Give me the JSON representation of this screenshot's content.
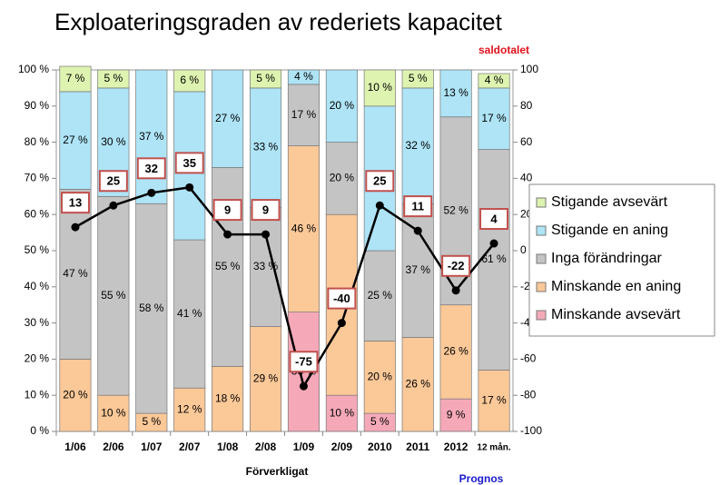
{
  "chart_data": {
    "type": "stacked_bar_line",
    "title": "Exploateringsgraden av rederiets kapacitet",
    "y2label": "saldotalet",
    "annotations": [
      "Förverkligat",
      "Prognos"
    ],
    "categories": [
      "1/06",
      "2/06",
      "1/07",
      "2/07",
      "1/08",
      "2/08",
      "1/09",
      "2/09",
      "2010",
      "2011",
      "2012",
      "12 mån."
    ],
    "series": [
      {
        "name": "Minskande avsevärt",
        "color": "#f5a9b8",
        "values": [
          0,
          0,
          0,
          0,
          0,
          0,
          33,
          10,
          5,
          0,
          9,
          0
        ],
        "value_labels": [
          null,
          null,
          null,
          null,
          null,
          null,
          "33 %",
          "10 %",
          "5 %",
          null,
          "9 %",
          null
        ]
      },
      {
        "name": "Minskande en aning",
        "color": "#fbc898",
        "values": [
          20,
          10,
          5,
          12,
          18,
          29,
          46,
          50,
          20,
          26,
          26,
          17
        ],
        "value_labels": [
          "20 %",
          "10 %",
          "5 %",
          "12 %",
          "18 %",
          "29 %",
          "46 %",
          "50 %",
          "20 %",
          "26 %",
          "26 %",
          "17 %"
        ]
      },
      {
        "name": "Inga förändringar",
        "color": "#c4c4c4",
        "values": [
          47,
          55,
          58,
          41,
          55,
          33,
          17,
          20,
          25,
          37,
          52,
          61
        ],
        "value_labels": [
          "47 %",
          "55 %",
          "58 %",
          "41 %",
          "55 %",
          "33 %",
          "17 %",
          "20 %",
          "25 %",
          "37 %",
          "52 %",
          "61 %"
        ]
      },
      {
        "name": "Stigande en aning",
        "color": "#aee4f6",
        "values": [
          27,
          30,
          37,
          41,
          27,
          33,
          4,
          20,
          40,
          32,
          13,
          17
        ],
        "value_labels": [
          "27 %",
          "30 %",
          "37 %",
          "41 %",
          "27 %",
          "33 %",
          "4 %",
          "20 %",
          "40 %",
          "32 %",
          "13 %",
          "17 %"
        ]
      },
      {
        "name": "Stigande avsevärt",
        "color": "#def3b0",
        "values": [
          7,
          5,
          0,
          6,
          0,
          5,
          0,
          0,
          10,
          5,
          0,
          4
        ],
        "value_labels": [
          "7 %",
          "5 %",
          null,
          "6 %",
          null,
          "5 %",
          null,
          null,
          "10 %",
          "5 %",
          null,
          "4 %"
        ]
      }
    ],
    "line": {
      "color": "#000000",
      "axis": "y2",
      "values": [
        13,
        25,
        32,
        35,
        9,
        9,
        -75,
        -40,
        25,
        11,
        -22,
        4
      ]
    },
    "ylim": [
      0,
      100
    ],
    "yticks": [
      {
        "value": 0,
        "label": "0 %"
      },
      {
        "value": 10,
        "label": "10 %"
      },
      {
        "value": 20,
        "label": "20 %"
      },
      {
        "value": 30,
        "label": "30 %"
      },
      {
        "value": 40,
        "label": "40 %"
      },
      {
        "value": 50,
        "label": "50 %"
      },
      {
        "value": 60,
        "label": "60 %"
      },
      {
        "value": 70,
        "label": "70 %"
      },
      {
        "value": 80,
        "label": "80 %"
      },
      {
        "value": 90,
        "label": "90 %"
      },
      {
        "value": 100,
        "label": "100 %"
      }
    ],
    "y2lim": [
      -100,
      100
    ],
    "y2ticks": [
      -100,
      -80,
      -60,
      -40,
      -20,
      0,
      20,
      40,
      60,
      80,
      100
    ],
    "legend": "right"
  }
}
